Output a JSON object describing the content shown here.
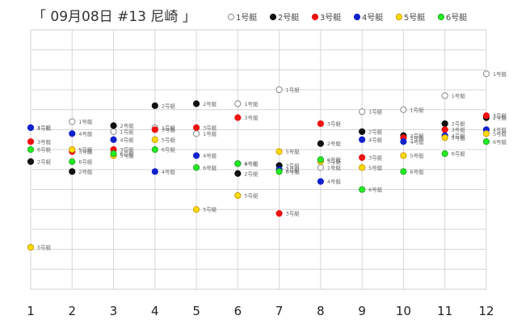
{
  "chart_data": {
    "type": "scatter",
    "title": "「 09月08日 #13 尼崎 」",
    "xlabel": "",
    "ylabel": "",
    "x": [
      1,
      2,
      3,
      4,
      5,
      6,
      7,
      8,
      9,
      10,
      11,
      12
    ],
    "xlim": [
      1,
      12
    ],
    "ylim": [
      0,
      13
    ],
    "grid": true,
    "legend_position": "top-right",
    "series": [
      {
        "name": "1号艇",
        "color": "#ffffff",
        "stroke": "#888888",
        "label": "1号艇",
        "values": [
          8.1,
          8.4,
          7.9,
          8.1,
          7.8,
          9.3,
          10.0,
          6.1,
          8.9,
          9.0,
          9.7,
          10.8
        ]
      },
      {
        "name": "2号艇",
        "color": "#111111",
        "stroke": "#111111",
        "label": "2号艇",
        "values": [
          6.4,
          5.9,
          8.2,
          9.2,
          9.3,
          5.8,
          6.2,
          7.3,
          7.9,
          7.7,
          8.3,
          8.6
        ]
      },
      {
        "name": "3号艇",
        "color": "#ee1111",
        "stroke": "#ee1111",
        "label": "3号艇",
        "values": [
          7.4,
          6.9,
          7.0,
          8.0,
          8.1,
          8.6,
          3.8,
          8.3,
          6.6,
          7.6,
          8.0,
          8.7
        ]
      },
      {
        "name": "4号艇",
        "color": "#1122cc",
        "stroke": "#1122cc",
        "label": "4号艇",
        "values": [
          8.1,
          7.8,
          7.5,
          5.9,
          6.7,
          6.3,
          6.0,
          5.4,
          7.5,
          7.4,
          7.7,
          8.0
        ]
      },
      {
        "name": "5号艇",
        "color": "#ffdd00",
        "stroke": "#cc9900",
        "label": "5号艇",
        "values": [
          2.1,
          7.0,
          6.7,
          7.5,
          4.0,
          4.7,
          6.9,
          6.4,
          6.1,
          6.7,
          7.6,
          7.8
        ]
      },
      {
        "name": "6号艇",
        "color": "#22ee22",
        "stroke": "#22aa22",
        "label": "6号艇",
        "values": [
          7.0,
          6.4,
          6.8,
          7.0,
          6.1,
          6.3,
          5.9,
          6.5,
          5.0,
          5.9,
          6.8,
          7.4
        ]
      }
    ]
  }
}
